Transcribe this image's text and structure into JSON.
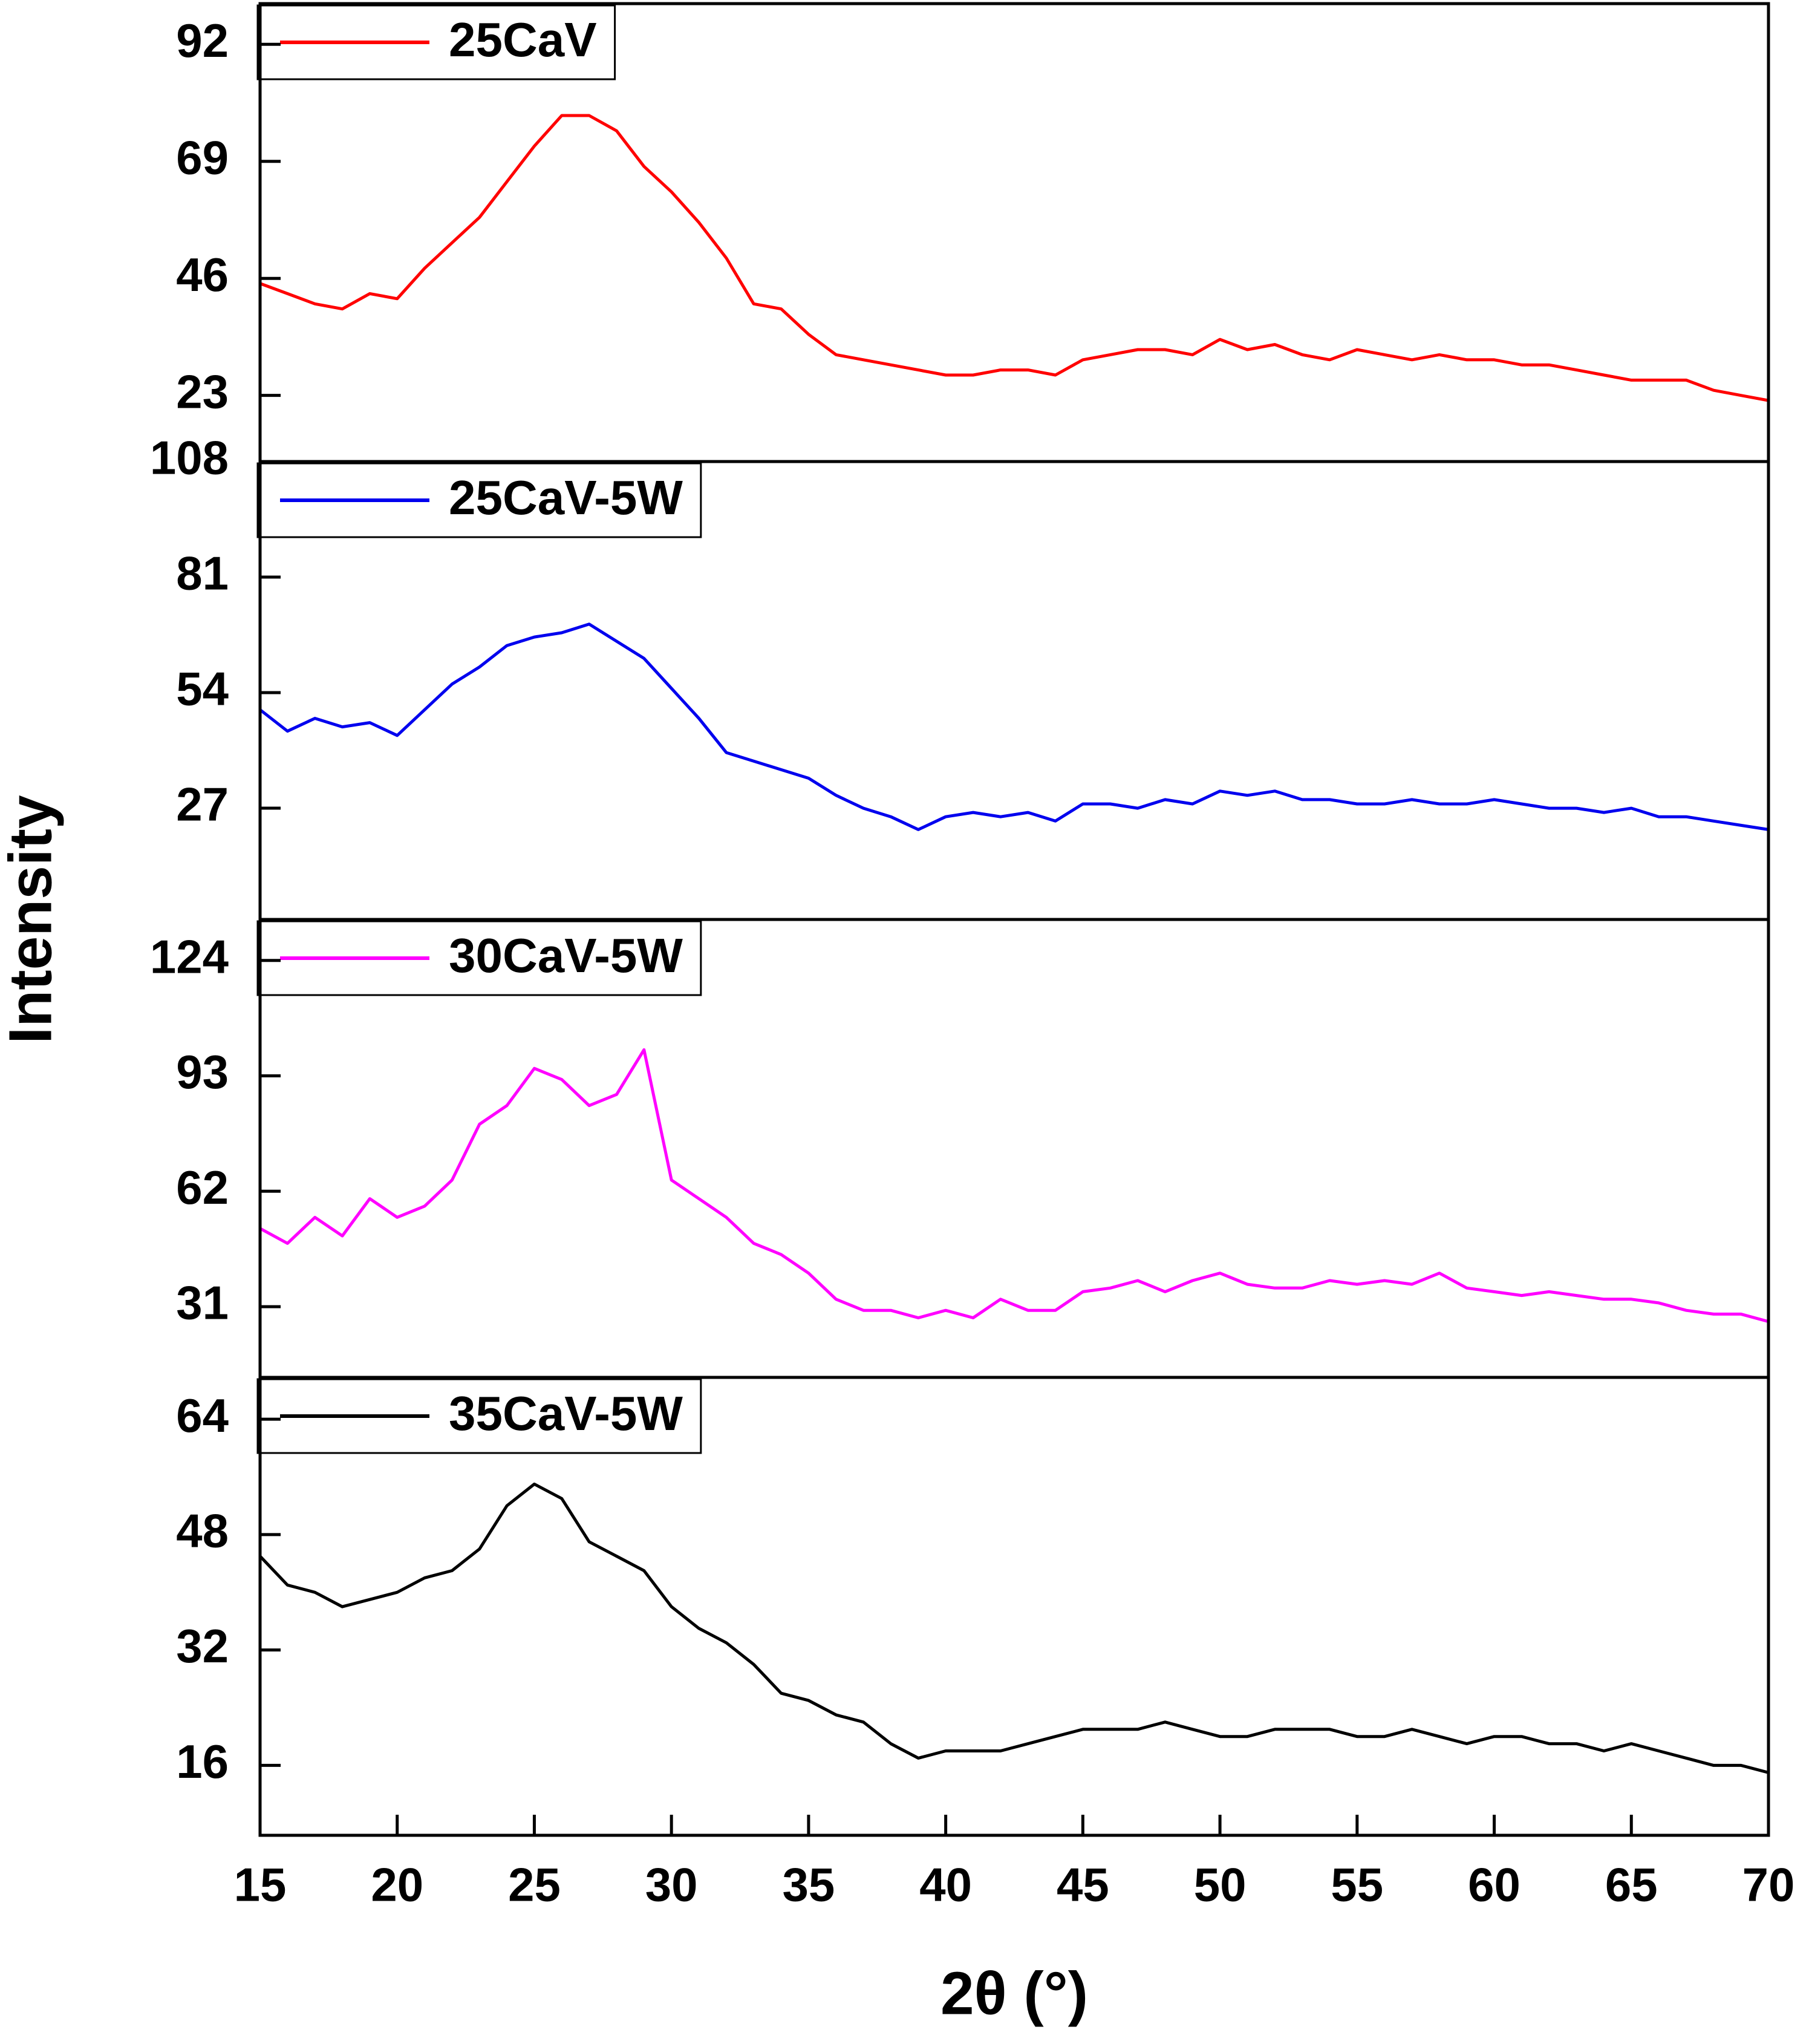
{
  "chart_data": [
    {
      "type": "line",
      "ylabel": "Intensity",
      "x": [
        15,
        16,
        17,
        18,
        19,
        20,
        21,
        22,
        23,
        24,
        25,
        26,
        27,
        28,
        29,
        30,
        31,
        32,
        33,
        34,
        35,
        36,
        37,
        38,
        39,
        40,
        41,
        42,
        43,
        44,
        45,
        46,
        47,
        48,
        49,
        50,
        51,
        52,
        53,
        54,
        55,
        56,
        57,
        58,
        59,
        60,
        61,
        62,
        63,
        64,
        65,
        66,
        67,
        68,
        69,
        70
      ],
      "series": [
        {
          "name": "25CaV",
          "color": "#ff0000",
          "values": [
            45,
            43,
            41,
            40,
            43,
            42,
            48,
            53,
            58,
            65,
            72,
            78,
            78,
            75,
            68,
            63,
            57,
            50,
            41,
            40,
            35,
            31,
            30,
            29,
            28,
            27,
            27,
            28,
            28,
            27,
            30,
            31,
            32,
            32,
            31,
            34,
            32,
            33,
            31,
            30,
            32,
            31,
            30,
            31,
            30,
            30,
            29,
            29,
            28,
            27,
            26,
            26,
            26,
            24,
            23,
            22
          ]
        }
      ],
      "xlim": [
        15,
        70
      ],
      "ylim": [
        10,
        100
      ],
      "yticks": [
        23,
        46,
        69,
        92
      ]
    },
    {
      "type": "line",
      "x": [
        15,
        16,
        17,
        18,
        19,
        20,
        21,
        22,
        23,
        24,
        25,
        26,
        27,
        28,
        29,
        30,
        31,
        32,
        33,
        34,
        35,
        36,
        37,
        38,
        39,
        40,
        41,
        42,
        43,
        44,
        45,
        46,
        47,
        48,
        49,
        50,
        51,
        52,
        53,
        54,
        55,
        56,
        57,
        58,
        59,
        60,
        61,
        62,
        63,
        64,
        65,
        66,
        67,
        68,
        69,
        70
      ],
      "series": [
        {
          "name": "25CaV-5W",
          "color": "#0000ee",
          "values": [
            50,
            45,
            48,
            46,
            47,
            44,
            50,
            56,
            60,
            65,
            67,
            68,
            70,
            66,
            62,
            55,
            48,
            40,
            38,
            36,
            34,
            30,
            27,
            25,
            22,
            25,
            26,
            25,
            26,
            24,
            28,
            28,
            27,
            29,
            28,
            31,
            30,
            31,
            29,
            29,
            28,
            28,
            29,
            28,
            28,
            29,
            28,
            27,
            27,
            26,
            27,
            25,
            25,
            24,
            23,
            22
          ]
        }
      ],
      "xlim": [
        15,
        70
      ],
      "ylim": [
        1,
        108
      ],
      "yticks": [
        27,
        54,
        81,
        108
      ]
    },
    {
      "type": "line",
      "x": [
        15,
        16,
        17,
        18,
        19,
        20,
        21,
        22,
        23,
        24,
        25,
        26,
        27,
        28,
        29,
        30,
        31,
        32,
        33,
        34,
        35,
        36,
        37,
        38,
        39,
        40,
        41,
        42,
        43,
        44,
        45,
        46,
        47,
        48,
        49,
        50,
        51,
        52,
        53,
        54,
        55,
        56,
        57,
        58,
        59,
        60,
        61,
        62,
        63,
        64,
        65,
        66,
        67,
        68,
        69,
        70
      ],
      "series": [
        {
          "name": "30CaV-5W",
          "color": "#ff00ff",
          "values": [
            52,
            48,
            55,
            50,
            60,
            55,
            58,
            65,
            80,
            85,
            95,
            92,
            85,
            88,
            100,
            65,
            60,
            55,
            48,
            45,
            40,
            33,
            30,
            30,
            28,
            30,
            28,
            33,
            30,
            30,
            35,
            36,
            38,
            35,
            38,
            40,
            37,
            36,
            36,
            38,
            37,
            38,
            37,
            40,
            36,
            35,
            34,
            35,
            34,
            33,
            33,
            32,
            30,
            29,
            29,
            27
          ]
        }
      ],
      "xlim": [
        15,
        70
      ],
      "ylim": [
        12,
        135
      ],
      "yticks": [
        31,
        62,
        93,
        124
      ]
    },
    {
      "type": "line",
      "xlabel": "2θ (°)",
      "x": [
        15,
        16,
        17,
        18,
        19,
        20,
        21,
        22,
        23,
        24,
        25,
        26,
        27,
        28,
        29,
        30,
        31,
        32,
        33,
        34,
        35,
        36,
        37,
        38,
        39,
        40,
        41,
        42,
        43,
        44,
        45,
        46,
        47,
        48,
        49,
        50,
        51,
        52,
        53,
        54,
        55,
        56,
        57,
        58,
        59,
        60,
        61,
        62,
        63,
        64,
        65,
        66,
        67,
        68,
        69,
        70
      ],
      "series": [
        {
          "name": "35CaV-5W",
          "color": "#000000",
          "values": [
            45,
            41,
            40,
            38,
            39,
            40,
            42,
            43,
            46,
            52,
            55,
            53,
            47,
            45,
            43,
            38,
            35,
            33,
            30,
            26,
            25,
            23,
            22,
            19,
            17,
            18,
            18,
            18,
            19,
            20,
            21,
            21,
            21,
            22,
            21,
            20,
            20,
            21,
            21,
            21,
            20,
            20,
            21,
            20,
            19,
            20,
            20,
            19,
            19,
            18,
            19,
            18,
            17,
            16,
            16,
            15
          ]
        }
      ],
      "xlim": [
        15,
        70
      ],
      "ylim": [
        6.3,
        69.8
      ],
      "yticks": [
        16,
        32,
        48,
        64
      ],
      "xticks": [
        15,
        20,
        25,
        30,
        35,
        40,
        45,
        50,
        55,
        60,
        65,
        70
      ]
    }
  ]
}
